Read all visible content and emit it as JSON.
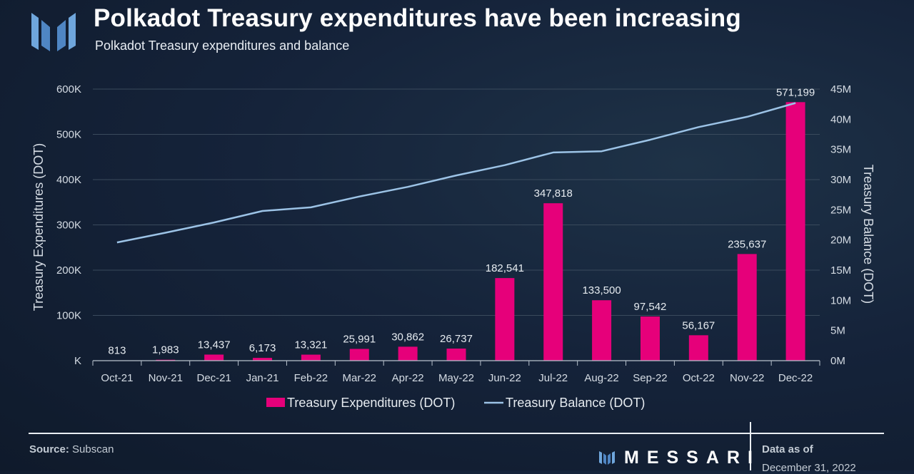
{
  "header": {
    "title": "Polkadot Treasury expenditures have been increasing",
    "subtitle": "Polkadot Treasury expenditures and balance"
  },
  "footer": {
    "source_label": "Source:",
    "source_value": "Subscan",
    "brand": "MESSARI",
    "data_as_of_label": "Data as of",
    "data_as_of_date": "December 31, 2022"
  },
  "colors": {
    "bar": "#e6007a",
    "line": "#9cc3e6",
    "grid": "#3a4a5c",
    "axis_text": "#d5dce4",
    "logo_blue": "#6fa6dc"
  },
  "chart_data": {
    "type": "bar",
    "categories": [
      "Oct-21",
      "Nov-21",
      "Dec-21",
      "Jan-21",
      "Feb-22",
      "Mar-22",
      "Apr-22",
      "May-22",
      "Jun-22",
      "Jul-22",
      "Aug-22",
      "Sep-22",
      "Oct-22",
      "Nov-22",
      "Dec-22"
    ],
    "series": [
      {
        "name": "Treasury Expenditures (DOT)",
        "type": "bar",
        "axis": "left",
        "values": [
          813,
          1983,
          13437,
          6173,
          13321,
          25991,
          30862,
          26737,
          182541,
          347818,
          133500,
          97542,
          56167,
          235637,
          571199
        ],
        "labels": [
          "813",
          "1,983",
          "13,437",
          "6,173",
          "13,321",
          "25,991",
          "30,862",
          "26,737",
          "182,541",
          "347,818",
          "133,500",
          "97,542",
          "56,167",
          "235,637",
          "571,199"
        ]
      },
      {
        "name": "Treasury Balance (DOT)",
        "type": "line",
        "axis": "right",
        "values": [
          19600000,
          21200000,
          22900000,
          24800000,
          25400000,
          27200000,
          28800000,
          30700000,
          32400000,
          34500000,
          34700000,
          36600000,
          38700000,
          40400000,
          42700000
        ]
      }
    ],
    "ylabel": "Treasury Expenditures (DOT)",
    "y2label": "Treasury Balance (DOT)",
    "ylim": [
      0,
      600000
    ],
    "y2lim": [
      0,
      45000000
    ],
    "yticks": [
      "K",
      "100K",
      "200K",
      "300K",
      "400K",
      "500K",
      "600K"
    ],
    "y2ticks": [
      "0M",
      "5M",
      "10M",
      "15M",
      "20M",
      "25M",
      "30M",
      "35M",
      "40M",
      "45M"
    ],
    "grid": true,
    "legend": "bottom-center"
  }
}
